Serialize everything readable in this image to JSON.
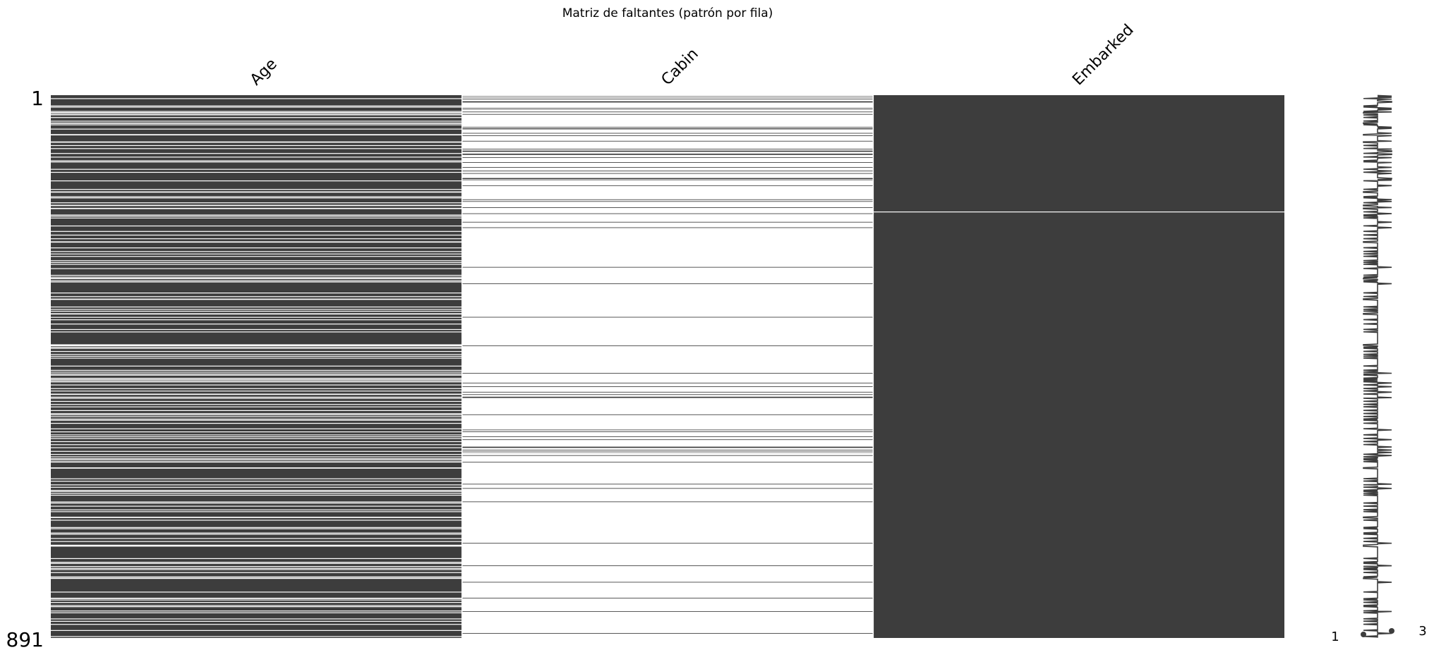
{
  "chart_data": {
    "type": "heatmap",
    "title": "Matriz de faltantes (patrón por fila)",
    "columns": [
      "Age",
      "Cabin",
      "Embarked"
    ],
    "row_count": 891,
    "row_labels": {
      "first": "1",
      "last": "891"
    },
    "sparkline_labels": {
      "min": "1",
      "max": "3"
    },
    "colors": {
      "present": "#3d3d3d",
      "missing": "#ffffff"
    },
    "missing_rows": {
      "Age": [
        6,
        18,
        20,
        27,
        29,
        30,
        32,
        33,
        37,
        43,
        46,
        47,
        49,
        56,
        65,
        66,
        77,
        78,
        83,
        88,
        96,
        102,
        108,
        110,
        122,
        127,
        141,
        155,
        159,
        160,
        167,
        169,
        177,
        181,
        182,
        186,
        187,
        197,
        199,
        202,
        215,
        224,
        230,
        236,
        241,
        242,
        251,
        257,
        261,
        265,
        272,
        275,
        278,
        285,
        296,
        299,
        301,
        302,
        305,
        307,
        325,
        331,
        335,
        336,
        348,
        352,
        355,
        359,
        360,
        365,
        369,
        376,
        385,
        389,
        410,
        411,
        412,
        414,
        416,
        421,
        426,
        429,
        432,
        445,
        452,
        455,
        458,
        460,
        465,
        467,
        469,
        471,
        476,
        482,
        486,
        491,
        492,
        496,
        498,
        503,
        508,
        512,
        518,
        523,
        525,
        528,
        532,
        534,
        539,
        548,
        553,
        558,
        561,
        564,
        569,
        574,
        579,
        585,
        590,
        594,
        597,
        599,
        602,
        603,
        612,
        613,
        630,
        634,
        640,
        644,
        649,
        651,
        654,
        657,
        668,
        670,
        675,
        681,
        684,
        693,
        694,
        698,
        710,
        712,
        719,
        721,
        728,
        733,
        739,
        740,
        741,
        761,
        767,
        769,
        774,
        777,
        779,
        784,
        791,
        793,
        794,
        816,
        826,
        827,
        829,
        833,
        838,
        840,
        847,
        850,
        860,
        864,
        869,
        879,
        889
      ],
      "Cabin": [
        1,
        3,
        5,
        6,
        8,
        9,
        10,
        13,
        14,
        15,
        16,
        17,
        18,
        19,
        20,
        21,
        23,
        25,
        26,
        27,
        29,
        30,
        31,
        33,
        34,
        35,
        36,
        37,
        38,
        39,
        40,
        41,
        42,
        43,
        44,
        45,
        46,
        47,
        48,
        49,
        50,
        51,
        52,
        54,
        57,
        58,
        59,
        60,
        61,
        62,
        64,
        65,
        66,
        68,
        69,
        70,
        71,
        72,
        73,
        74,
        75,
        77,
        78,
        79,
        80,
        81,
        82,
        83,
        84,
        85,
        86,
        87,
        88,
        90,
        91,
        94,
        95,
        96,
        99,
        100,
        101,
        102,
        104,
        105,
        106,
        107,
        108,
        109,
        110,
        112,
        113,
        114,
        115,
        116,
        117,
        118,
        120,
        121,
        122,
        123,
        124,
        126,
        127,
        128,
        130,
        131,
        132,
        133,
        134,
        135,
        136,
        139,
        141,
        142,
        143,
        144,
        145,
        146,
        147,
        148,
        150,
        151,
        152,
        153,
        154,
        155,
        156,
        157,
        158,
        159,
        160,
        161,
        162,
        163,
        164,
        165,
        166,
        167,
        168,
        169,
        170,
        171,
        172,
        173,
        174,
        176,
        177,
        178,
        179,
        180,
        181,
        182,
        183,
        184,
        186,
        187,
        188,
        189,
        190,
        191,
        192,
        193,
        194,
        196,
        197,
        198,
        199,
        200,
        201,
        202,
        203,
        204,
        205,
        206,
        207,
        208,
        210,
        211,
        212,
        213,
        214,
        215,
        216,
        217,
        219,
        220,
        221,
        222,
        223,
        224,
        225,
        226,
        227,
        228,
        229,
        230,
        231,
        232,
        233,
        234,
        235,
        236,
        237,
        238,
        239,
        240,
        241,
        242,
        243,
        244,
        245,
        246,
        247,
        248,
        249,
        250,
        251,
        252,
        253,
        254,
        255,
        256,
        257,
        258,
        259,
        260,
        261,
        262,
        263,
        264,
        265,
        266,
        267,
        268,
        269,
        270,
        271,
        272,
        273,
        274,
        275,
        276,
        277,
        278,
        279,
        280,
        281,
        282,
        283,
        284,
        285,
        286,
        287,
        288,
        289,
        290,
        291,
        292,
        293,
        294,
        295,
        296,
        297,
        298,
        299,
        300,
        301,
        302,
        303,
        304,
        305,
        306,
        307,
        308,
        309,
        310,
        311,
        312,
        313,
        314,
        315,
        316,
        317,
        318,
        319,
        320,
        321,
        322,
        323,
        324,
        325,
        326,
        327,
        328,
        329,
        330,
        331,
        332,
        333,
        334,
        335,
        336,
        337,
        338,
        339,
        340,
        341,
        342,
        343,
        344,
        345,
        346,
        347,
        348,
        349,
        350,
        351,
        352,
        353,
        354,
        355,
        356,
        357,
        358,
        359,
        360,
        361,
        362,
        363,
        364,
        365,
        366,
        367,
        368,
        369,
        370,
        371,
        372,
        373,
        374,
        375,
        376,
        377,
        378,
        379,
        380,
        381,
        382,
        383,
        384,
        385,
        386,
        387,
        388,
        389,
        390,
        391,
        392,
        393,
        394,
        395,
        396,
        397,
        398,
        399,
        400,
        401,
        402,
        403,
        404,
        405,
        406,
        407,
        408,
        409,
        410,
        411,
        412,
        413,
        414,
        415,
        416,
        417,
        418,
        419,
        420,
        421,
        422,
        423,
        424,
        425,
        426,
        427,
        428,
        429,
        430,
        431,
        432,
        433,
        434,
        435,
        436,
        437,
        438,
        439,
        440,
        441,
        442,
        443,
        444,
        445,
        446,
        447,
        448,
        449,
        450,
        451,
        452,
        453,
        454,
        455,
        456,
        457,
        458,
        459,
        460,
        461,
        462,
        463,
        464,
        465,
        466,
        467,
        468,
        469,
        470,
        471,
        472,
        473,
        474,
        475,
        476,
        477,
        478,
        479,
        480,
        481,
        482,
        483,
        484,
        485,
        486,
        487,
        488,
        489,
        490,
        491,
        492,
        493,
        494,
        495,
        496,
        497,
        498,
        499,
        500,
        501,
        502,
        503,
        504,
        505,
        506,
        507,
        508,
        509,
        510,
        511,
        512,
        513,
        514,
        515,
        516,
        517,
        518,
        519,
        520,
        521,
        522,
        523,
        524,
        525,
        526,
        527,
        528,
        529,
        530,
        531,
        532,
        533,
        534,
        535,
        536,
        537,
        538,
        539,
        540,
        541,
        542,
        543,
        544,
        545,
        546,
        547,
        548,
        549,
        550,
        551,
        552,
        553,
        554,
        555,
        556,
        557,
        558,
        559,
        560,
        561,
        562,
        563,
        564,
        565,
        566,
        567,
        568,
        569,
        570,
        571,
        572,
        573,
        574,
        575,
        576,
        577,
        578,
        579,
        580,
        581,
        582,
        583,
        584,
        585,
        586,
        587,
        588,
        589,
        590,
        591,
        592,
        593,
        594,
        595,
        596,
        597,
        598,
        599,
        600,
        601,
        602,
        603,
        604,
        605,
        606,
        607,
        608,
        609,
        610,
        611,
        612,
        613,
        614,
        615,
        616,
        617,
        618,
        619,
        620,
        621,
        622,
        623,
        624,
        625,
        626,
        627,
        628,
        629,
        630,
        631,
        632,
        633,
        634,
        635,
        636,
        637,
        638,
        639,
        640,
        641,
        642,
        643,
        644,
        645,
        646,
        647,
        648,
        649,
        650,
        651,
        652,
        653,
        654,
        655,
        656,
        657,
        658,
        659,
        660,
        661,
        662,
        663,
        664,
        665,
        666,
        667,
        668,
        669,
        670,
        671,
        672,
        673,
        674,
        675,
        676,
        677,
        678,
        679,
        680,
        681,
        682,
        683,
        684,
        685,
        686,
        687,
        688,
        689,
        690,
        691,
        692,
        693,
        694,
        695,
        696,
        697,
        698,
        699,
        700,
        701,
        702,
        703,
        704,
        705,
        706,
        707,
        708,
        709,
        710,
        711,
        712,
        713,
        714,
        715,
        716,
        717,
        718,
        719,
        720,
        721,
        722,
        723,
        724,
        725,
        726,
        727,
        728,
        729,
        730,
        731,
        732,
        733,
        734,
        735,
        736,
        737,
        738,
        739,
        740,
        741,
        742,
        743,
        744,
        745,
        746,
        747,
        748,
        749,
        750,
        751,
        752,
        753,
        754,
        755,
        756,
        757,
        758,
        759,
        760,
        761,
        762,
        763,
        764,
        765,
        766,
        767,
        768,
        769,
        770,
        771,
        772,
        773,
        774,
        775,
        776,
        777,
        778,
        779,
        780,
        781,
        782,
        783,
        784,
        785,
        786,
        787,
        788,
        789,
        790,
        791,
        792,
        793,
        794,
        795,
        796,
        797,
        798,
        799,
        800,
        801,
        802,
        803,
        804,
        805,
        806,
        807,
        808,
        809,
        810,
        811,
        812,
        813,
        814,
        815,
        816,
        817,
        818,
        819,
        820,
        821,
        822,
        823,
        824,
        825,
        826,
        827,
        828,
        829,
        830,
        831,
        832,
        833,
        834,
        835,
        836,
        837,
        838,
        839,
        840,
        841,
        842,
        843,
        844,
        845,
        846,
        847,
        848,
        849,
        850,
        851,
        852,
        853,
        854,
        855,
        856,
        857,
        858,
        859,
        860,
        861,
        862,
        863,
        864,
        865,
        866,
        867,
        868,
        869,
        870,
        871,
        872,
        873,
        874,
        875,
        876,
        877,
        878,
        879,
        880,
        881,
        882,
        883,
        884,
        885,
        886,
        887,
        888,
        889,
        890
      ],
      "Embarked": [
        192
      ]
    },
    "cabin_present_rows_lower": [
      172,
      175,
      185,
      195,
      209,
      218,
      283,
      310,
      365,
      412,
      457,
      473,
      479,
      488,
      492,
      496,
      497,
      525,
      550,
      553,
      561,
      566,
      578,
      579,
      583,
      585,
      587,
      592,
      603,
      639,
      646,
      668,
      736,
      773,
      800,
      826,
      848,
      884
    ]
  }
}
